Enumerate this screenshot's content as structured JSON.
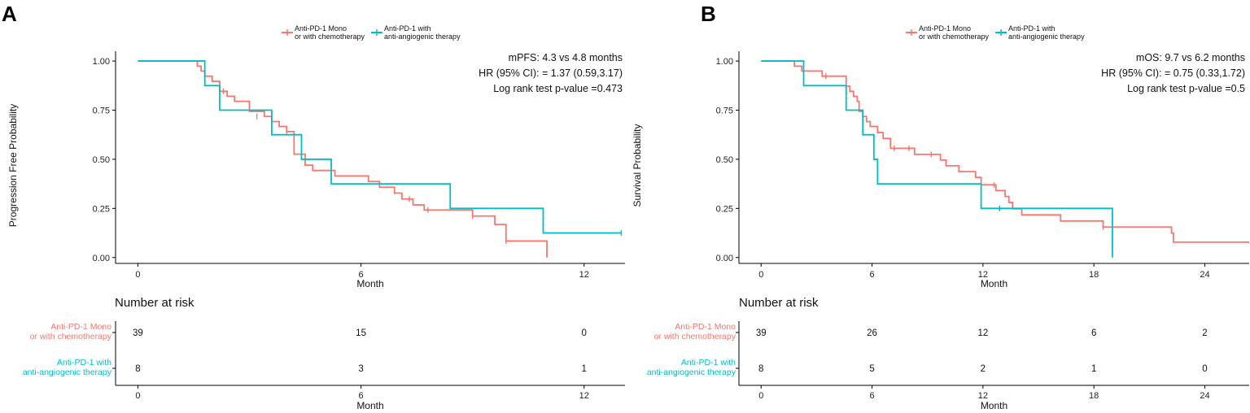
{
  "colors": {
    "mono": "#F8766D",
    "angio": "#00BFC4"
  },
  "legend": {
    "mono_label_line1": "Anti-PD-1 Mono",
    "mono_label_line2": "or with chemotherapy",
    "angio_label_line1": "Anti-PD-1 with",
    "angio_label_line2": "anti-angiogenic therapy"
  },
  "risk_table_title": "Number at risk",
  "chart_data": [
    {
      "panel": "A",
      "type": "line",
      "subtype": "kaplan-meier",
      "xlabel": "Month",
      "ylabel": "Progression Free Probability",
      "xlim": [
        -0.6,
        13.1
      ],
      "ylim": [
        -0.03,
        1.05
      ],
      "xticks": [
        0,
        6,
        12
      ],
      "yticks": [
        0.0,
        0.25,
        0.5,
        0.75,
        1.0
      ],
      "ytick_labels": [
        "0.00",
        "0.25",
        "0.50",
        "0.75",
        "1.00"
      ],
      "annotations": [
        "mPFS: 4.3 vs 4.8 months",
        "HR (95% CI): = 1.37 (0.59,3.17)",
        "Log rank test p-value =0.473"
      ],
      "series": [
        {
          "name": "Anti-PD-1 Mono or with chemotherapy",
          "color": "#F8766D",
          "steps": [
            [
              0,
              1.0
            ],
            [
              1.6,
              0.974
            ],
            [
              1.7,
              0.949
            ],
            [
              1.8,
              0.923
            ],
            [
              2.0,
              0.897
            ],
            [
              2.2,
              0.846
            ],
            [
              2.4,
              0.821
            ],
            [
              2.6,
              0.795
            ],
            [
              3.0,
              0.744
            ],
            [
              3.4,
              0.718
            ],
            [
              3.6,
              0.692
            ],
            [
              3.8,
              0.667
            ],
            [
              4.0,
              0.641
            ],
            [
              4.2,
              0.526
            ],
            [
              4.5,
              0.47
            ],
            [
              4.7,
              0.443
            ],
            [
              5.3,
              0.415
            ],
            [
              6.2,
              0.387
            ],
            [
              6.5,
              0.358
            ],
            [
              6.9,
              0.328
            ],
            [
              7.1,
              0.298
            ],
            [
              7.4,
              0.268
            ],
            [
              7.7,
              0.242
            ],
            [
              8.4,
              0.242
            ],
            [
              9.0,
              0.211
            ],
            [
              9.6,
              0.168
            ],
            [
              9.9,
              0.084
            ],
            [
              11.0,
              0.0
            ]
          ],
          "end_x": 11.0,
          "censors": [
            [
              2.3,
              0.846
            ],
            [
              3.2,
              0.718
            ],
            [
              4.0,
              0.641
            ],
            [
              7.3,
              0.298
            ],
            [
              7.8,
              0.242
            ],
            [
              9.0,
              0.211
            ],
            [
              9.9,
              0.084
            ]
          ]
        },
        {
          "name": "Anti-PD-1 with anti-angiogenic therapy",
          "color": "#00BFC4",
          "steps": [
            [
              0,
              1.0
            ],
            [
              1.8,
              0.875
            ],
            [
              2.2,
              0.75
            ],
            [
              3.6,
              0.625
            ],
            [
              4.4,
              0.5
            ],
            [
              5.2,
              0.375
            ],
            [
              8.4,
              0.25
            ],
            [
              10.9,
              0.125
            ]
          ],
          "end_x": 13.0,
          "censors": [
            [
              13.0,
              0.125
            ]
          ]
        }
      ],
      "risk_table": {
        "xticks": [
          0,
          6,
          12
        ],
        "rows": [
          {
            "label_line1": "Anti-PD-1 Mono",
            "label_line2": "or with chemotherapy",
            "color": "#F8766D",
            "counts": [
              "39",
              "15",
              "0"
            ]
          },
          {
            "label_line1": "Anti-PD-1 with",
            "label_line2": "anti-angiogenic therapy",
            "color": "#00BFC4",
            "counts": [
              "8",
              "3",
              "1"
            ]
          }
        ]
      }
    },
    {
      "panel": "B",
      "type": "line",
      "subtype": "kaplan-meier",
      "xlabel": "Month",
      "ylabel": "Survival Probability",
      "xlim": [
        -1.2,
        26.4
      ],
      "ylim": [
        -0.03,
        1.05
      ],
      "xticks": [
        0,
        6,
        12,
        18,
        24
      ],
      "yticks": [
        0.0,
        0.25,
        0.5,
        0.75,
        1.0
      ],
      "ytick_labels": [
        "0.00",
        "0.25",
        "0.50",
        "0.75",
        "1.00"
      ],
      "annotations": [
        "mOS: 9.7 vs 6.2 months",
        "HR (95% CI): = 0.75 (0.33,1.72)",
        "Log rank test p-value =0.5"
      ],
      "series": [
        {
          "name": "Anti-PD-1 Mono or with chemotherapy",
          "color": "#F8766D",
          "steps": [
            [
              0,
              1.0
            ],
            [
              1.8,
              0.974
            ],
            [
              2.2,
              0.949
            ],
            [
              3.3,
              0.923
            ],
            [
              4.6,
              0.872
            ],
            [
              4.8,
              0.846
            ],
            [
              5.0,
              0.82
            ],
            [
              5.2,
              0.795
            ],
            [
              5.3,
              0.744
            ],
            [
              5.5,
              0.718
            ],
            [
              5.7,
              0.692
            ],
            [
              5.9,
              0.667
            ],
            [
              6.3,
              0.636
            ],
            [
              6.6,
              0.606
            ],
            [
              7.0,
              0.556
            ],
            [
              8.3,
              0.525
            ],
            [
              9.7,
              0.496
            ],
            [
              10.0,
              0.467
            ],
            [
              10.7,
              0.437
            ],
            [
              11.6,
              0.408
            ],
            [
              11.9,
              0.37
            ],
            [
              12.7,
              0.341
            ],
            [
              13.2,
              0.311
            ],
            [
              13.4,
              0.28
            ],
            [
              13.6,
              0.248
            ],
            [
              14.1,
              0.217
            ],
            [
              16.2,
              0.186
            ],
            [
              18.5,
              0.155
            ],
            [
              22.2,
              0.124
            ],
            [
              22.3,
              0.078
            ]
          ],
          "end_x": 26.4,
          "censors": [
            [
              3.5,
              0.923
            ],
            [
              7.2,
              0.556
            ],
            [
              8.0,
              0.556
            ],
            [
              9.2,
              0.525
            ],
            [
              12.6,
              0.37
            ],
            [
              18.5,
              0.155
            ]
          ]
        },
        {
          "name": "Anti-PD-1 with anti-angiogenic therapy",
          "color": "#00BFC4",
          "steps": [
            [
              0,
              1.0
            ],
            [
              2.3,
              0.875
            ],
            [
              4.6,
              0.75
            ],
            [
              5.5,
              0.625
            ],
            [
              6.1,
              0.5
            ],
            [
              6.3,
              0.375
            ],
            [
              11.9,
              0.25
            ],
            [
              19.0,
              0.0
            ]
          ],
          "end_x": 19.0,
          "censors": [
            [
              12.9,
              0.25
            ]
          ]
        }
      ],
      "risk_table": {
        "xticks": [
          0,
          6,
          12,
          18,
          24
        ],
        "rows": [
          {
            "label_line1": "Anti-PD-1 Mono",
            "label_line2": "or with chemotherapy",
            "color": "#F8766D",
            "counts": [
              "39",
              "26",
              "12",
              "6",
              "2"
            ]
          },
          {
            "label_line1": "Anti-PD-1 with",
            "label_line2": "anti-angiogenic therapy",
            "color": "#00BFC4",
            "counts": [
              "8",
              "5",
              "2",
              "1",
              "0"
            ]
          }
        ]
      }
    }
  ]
}
